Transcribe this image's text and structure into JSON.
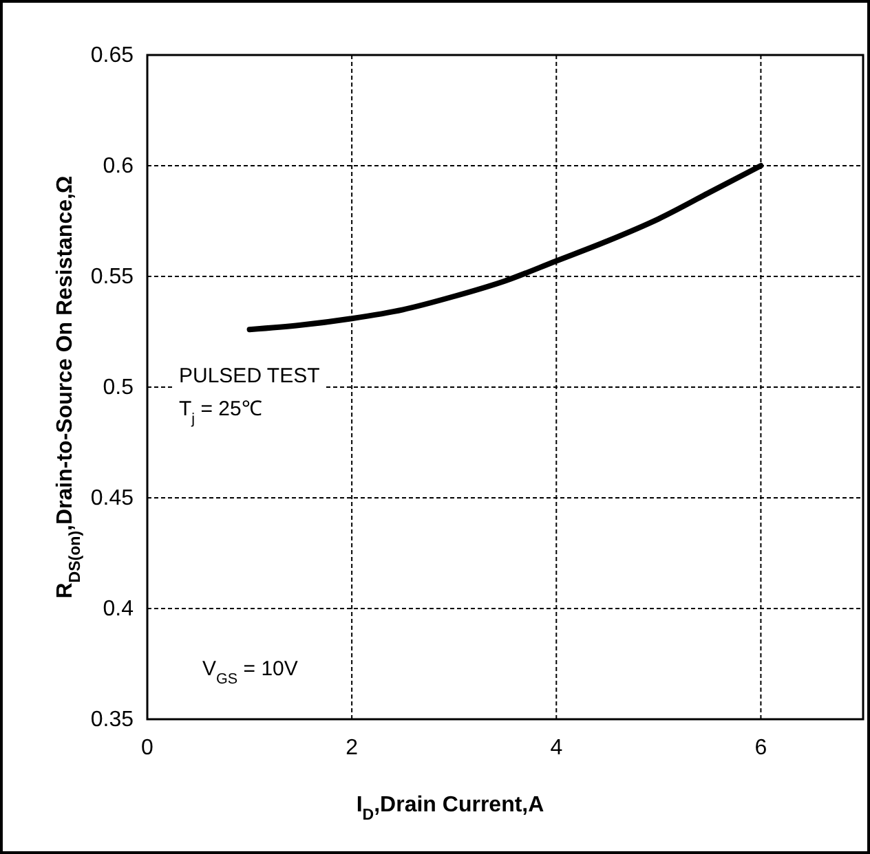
{
  "chart_data": {
    "type": "line",
    "xlabel": "I$_{D}$,Drain Current,A",
    "ylabel": "R$_{DS(on)}$,Drain-to-Source On Resistance,Ω",
    "x": [
      1,
      1.5,
      2,
      2.5,
      3,
      3.5,
      4,
      4.5,
      5,
      5.5,
      6
    ],
    "series": [
      {
        "color": "#000000",
        "values": [
          0.526,
          0.528,
          0.531,
          0.535,
          0.541,
          0.548,
          0.557,
          0.566,
          0.576,
          0.588,
          0.6
        ]
      }
    ],
    "xlim": [
      0,
      7
    ],
    "ylim": [
      0.35,
      0.65
    ],
    "xticks": [
      0,
      2,
      4,
      6
    ],
    "yticks": [
      0.35,
      0.4,
      0.45,
      0.5,
      0.55,
      0.6,
      0.65
    ],
    "grid": true,
    "marker": "none",
    "line_style": "solid",
    "annotations": [
      "PULSED TEST",
      "T$_{j}$ = 25℃",
      "V$_{GS}$ = 10V"
    ]
  }
}
